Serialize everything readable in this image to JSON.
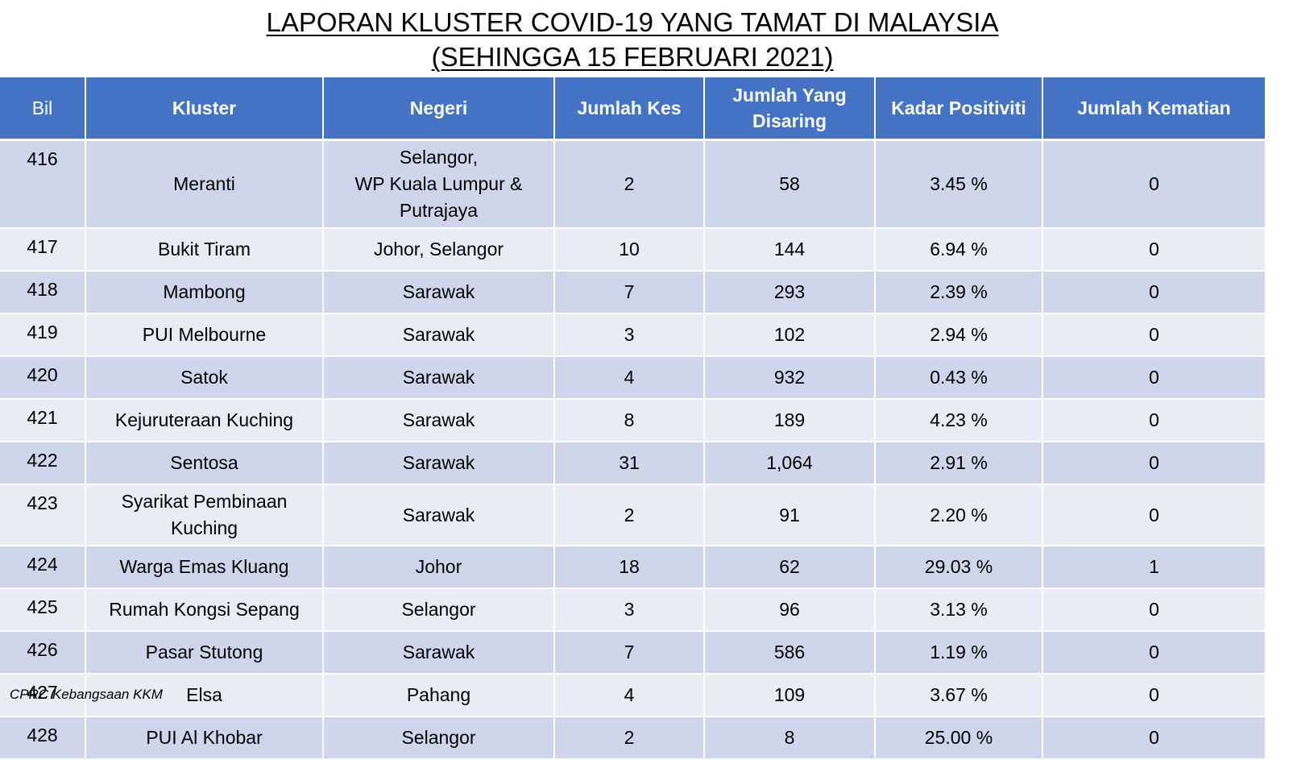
{
  "title": {
    "line1": "LAPORAN KLUSTER COVID-19 YANG TAMAT DI MALAYSIA",
    "line2": "(SEHINGGA 15 FEBRUARI 2021)"
  },
  "table": {
    "headers": [
      "Bil",
      "Kluster",
      "Negeri",
      "Jumlah Kes",
      "Jumlah Yang Disaring",
      "Kadar Positiviti",
      "Jumlah Kematian"
    ],
    "rows": [
      {
        "bil": "416",
        "kluster": "Meranti",
        "negeri": "Selangor,\nWP Kuala Lumpur &\nPutrajaya",
        "kes": "2",
        "disaring": "58",
        "positiviti": "3.45 %",
        "kematian": "0"
      },
      {
        "bil": "417",
        "kluster": "Bukit Tiram",
        "negeri": "Johor, Selangor",
        "kes": "10",
        "disaring": "144",
        "positiviti": "6.94 %",
        "kematian": "0"
      },
      {
        "bil": "418",
        "kluster": "Mambong",
        "negeri": "Sarawak",
        "kes": "7",
        "disaring": "293",
        "positiviti": "2.39 %",
        "kematian": "0"
      },
      {
        "bil": "419",
        "kluster": "PUI Melbourne",
        "negeri": "Sarawak",
        "kes": "3",
        "disaring": "102",
        "positiviti": "2.94 %",
        "kematian": "0"
      },
      {
        "bil": "420",
        "kluster": "Satok",
        "negeri": "Sarawak",
        "kes": "4",
        "disaring": "932",
        "positiviti": "0.43 %",
        "kematian": "0"
      },
      {
        "bil": "421",
        "kluster": "Kejuruteraan Kuching",
        "negeri": "Sarawak",
        "kes": "8",
        "disaring": "189",
        "positiviti": "4.23 %",
        "kematian": "0"
      },
      {
        "bil": "422",
        "kluster": "Sentosa",
        "negeri": "Sarawak",
        "kes": "31",
        "disaring": "1,064",
        "positiviti": "2.91 %",
        "kematian": "0"
      },
      {
        "bil": "423",
        "kluster": "Syarikat Pembinaan\nKuching",
        "negeri": "Sarawak",
        "kes": "2",
        "disaring": "91",
        "positiviti": "2.20 %",
        "kematian": "0"
      },
      {
        "bil": "424",
        "kluster": "Warga Emas Kluang",
        "negeri": "Johor",
        "kes": "18",
        "disaring": "62",
        "positiviti": "29.03 %",
        "kematian": "1"
      },
      {
        "bil": "425",
        "kluster": "Rumah Kongsi Sepang",
        "negeri": "Selangor",
        "kes": "3",
        "disaring": "96",
        "positiviti": "3.13 %",
        "kematian": "0"
      },
      {
        "bil": "426",
        "kluster": "Pasar Stutong",
        "negeri": "Sarawak",
        "kes": "7",
        "disaring": "586",
        "positiviti": "1.19 %",
        "kematian": "0"
      },
      {
        "bil": "427",
        "kluster": "Elsa",
        "negeri": "Pahang",
        "kes": "4",
        "disaring": "109",
        "positiviti": "3.67 %",
        "kematian": "0"
      },
      {
        "bil": "428",
        "kluster": "PUI Al Khobar",
        "negeri": "Selangor",
        "kes": "2",
        "disaring": "8",
        "positiviti": "25.00 %",
        "kematian": "0"
      }
    ]
  },
  "source": "CPRC Kebangsaan KKM",
  "colors": {
    "header_bg": "#4472c4",
    "row_dark": "#cfd5ea",
    "row_light": "#e9ebf5"
  }
}
